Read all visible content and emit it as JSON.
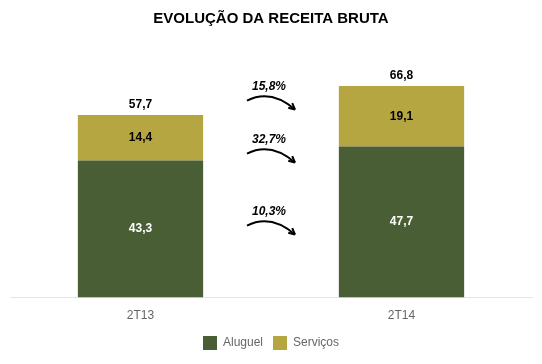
{
  "chart_data": {
    "type": "bar",
    "title": "EVOLUÇÃO DA RECEITA BRUTA",
    "categories": [
      "2T13",
      "2T14"
    ],
    "series": [
      {
        "name": "Aluguel",
        "color": "#4a5e35",
        "values": [
          43.3,
          47.7
        ],
        "value_labels": [
          "43,3",
          "47,7"
        ]
      },
      {
        "name": "Serviços",
        "color": "#b5a642",
        "values": [
          14.4,
          19.1
        ],
        "value_labels": [
          "14,4",
          "19,1"
        ]
      }
    ],
    "totals": [
      57.7,
      66.8
    ],
    "total_labels": [
      "57,7",
      "66,8"
    ],
    "annotations": [
      "10,3%",
      "32,7%",
      "15,8%"
    ],
    "stacked": true,
    "data_labels": true,
    "ylim": [
      0,
      82
    ],
    "tick_labels": "x",
    "grid": false,
    "legend": "bottom"
  }
}
